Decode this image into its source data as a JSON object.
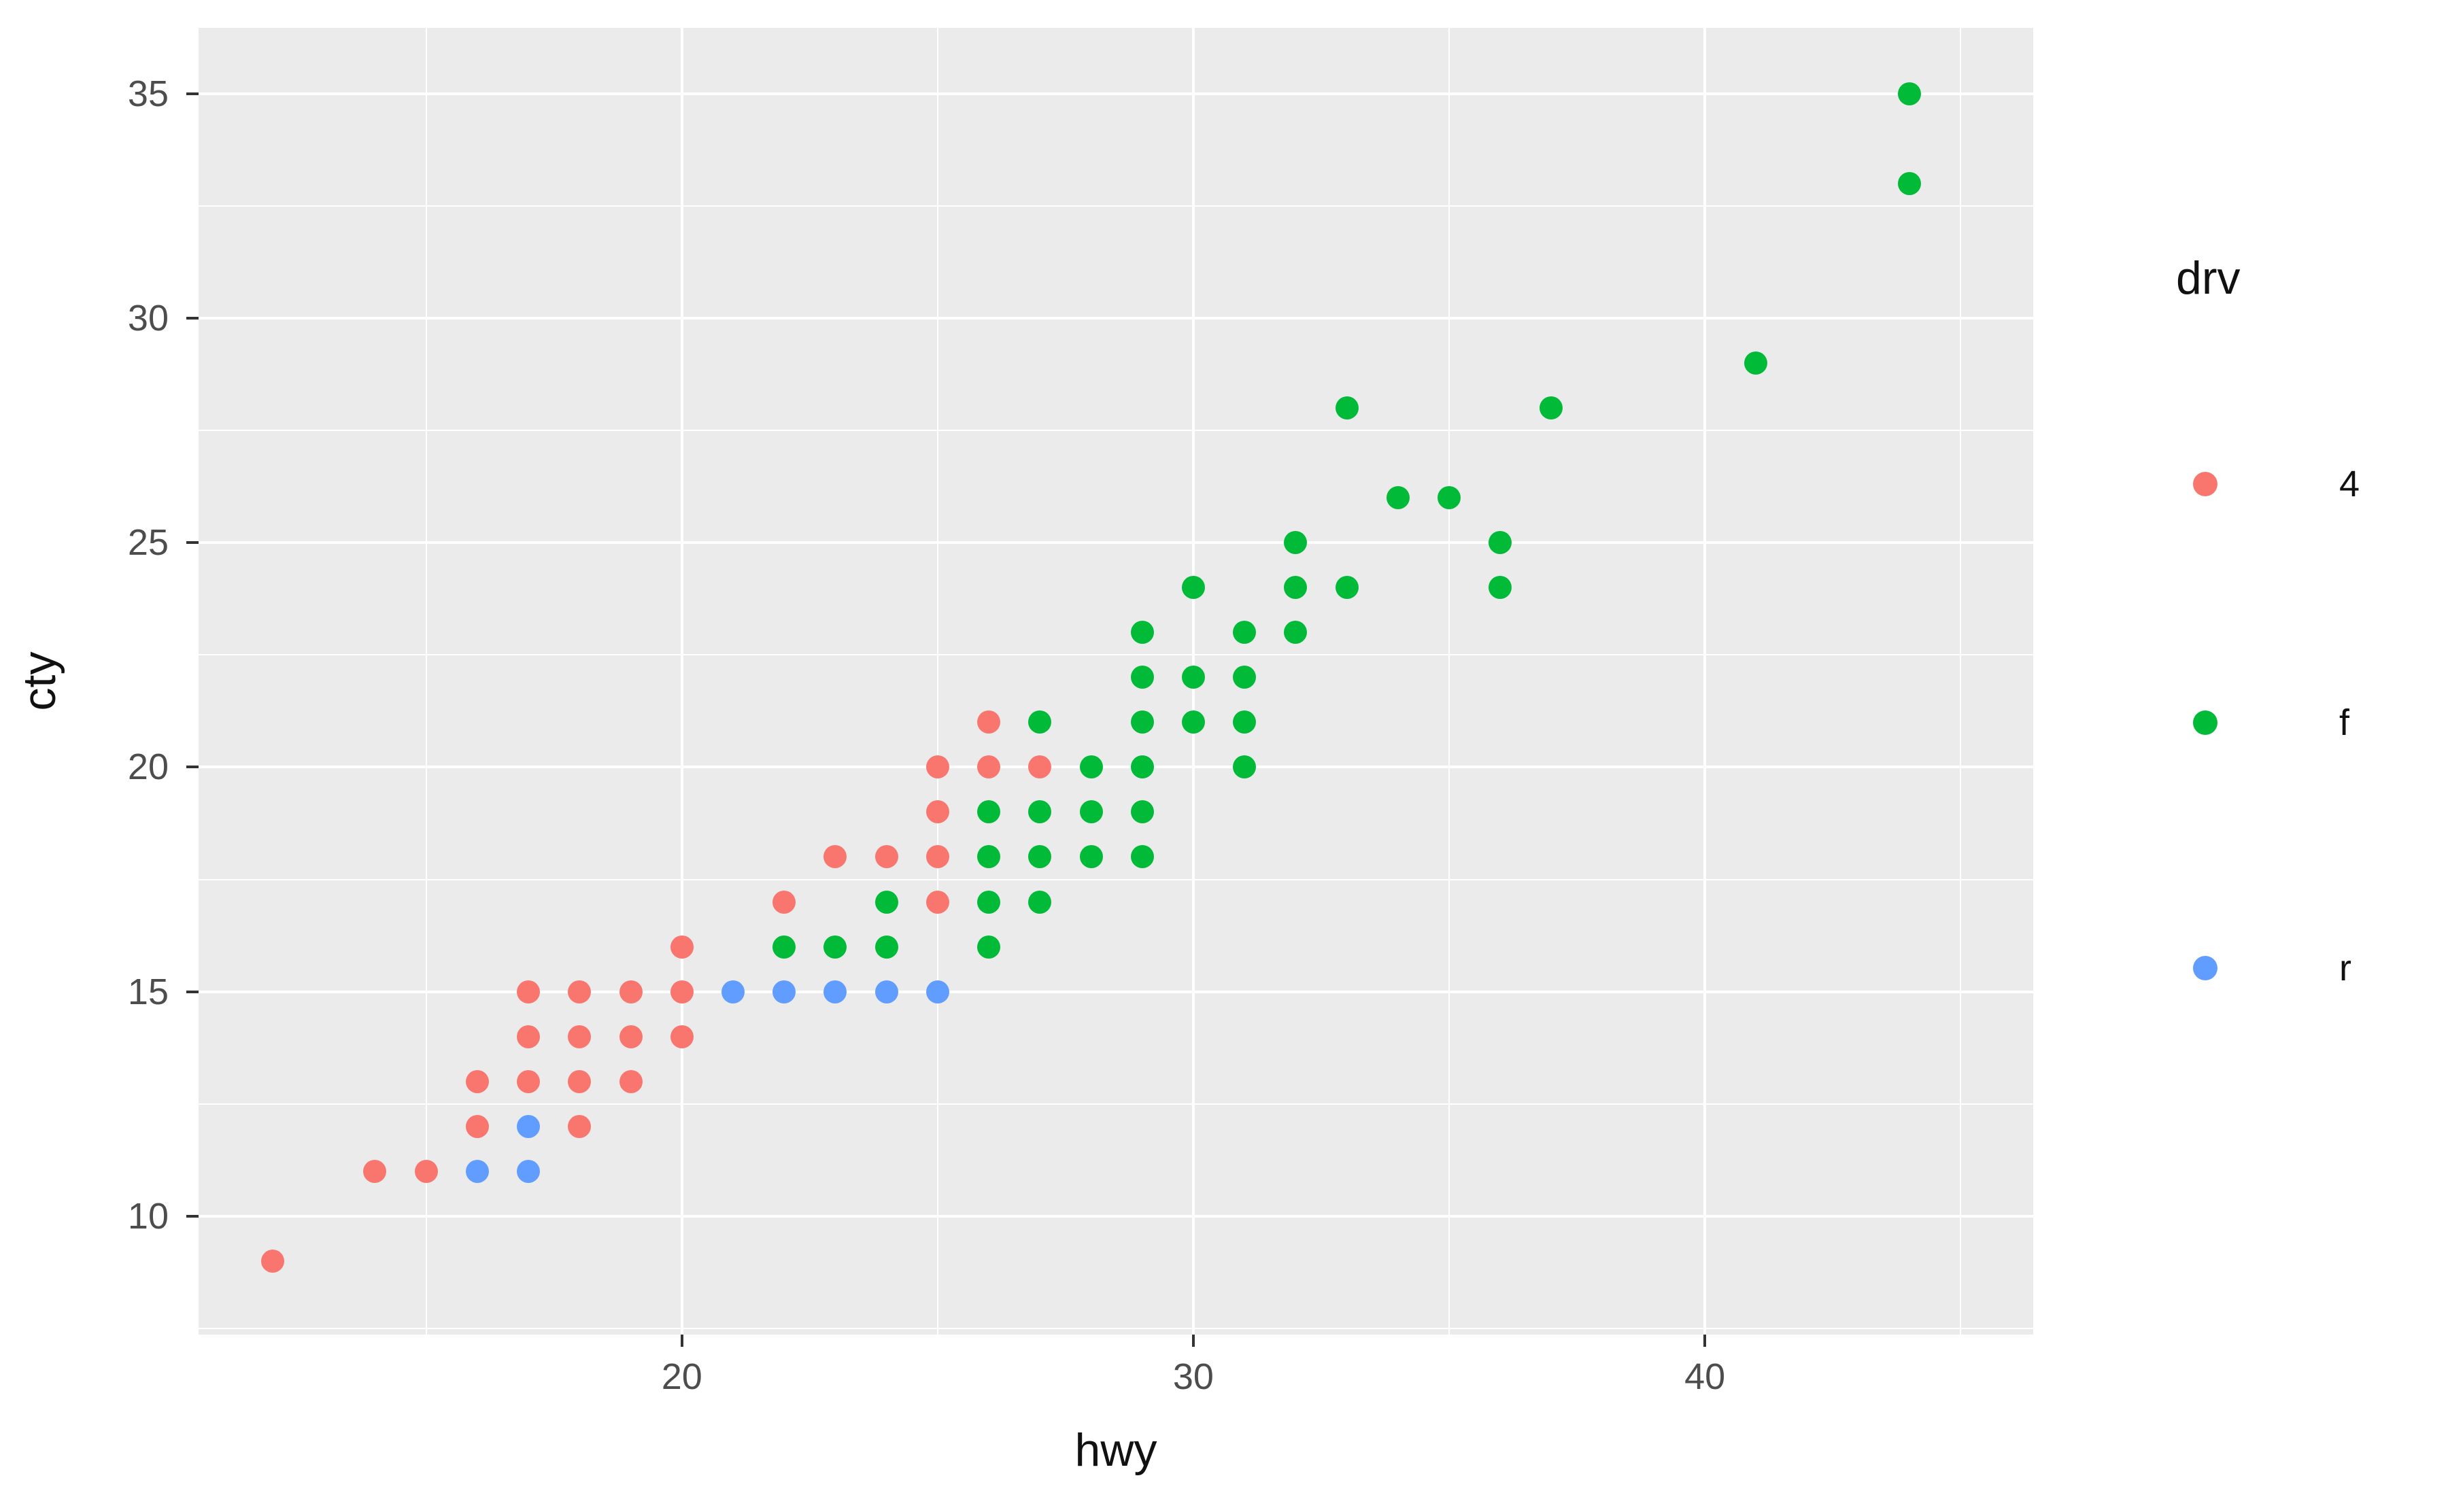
{
  "chart_data": {
    "type": "scatter",
    "title": "",
    "xlabel": "hwy",
    "ylabel": "cty",
    "xlim": [
      10.55,
      46.42
    ],
    "ylim": [
      7.36,
      36.47
    ],
    "x_ticks": [
      20,
      30,
      40
    ],
    "y_ticks": [
      10,
      15,
      20,
      25,
      30,
      35
    ],
    "x_minor": [
      15,
      25,
      35,
      45
    ],
    "y_minor": [
      7.5,
      12.5,
      17.5,
      22.5,
      27.5,
      32.5
    ],
    "grid": "on",
    "legend": {
      "title": "drv",
      "position": "right"
    },
    "style": {
      "panel_background": "#EBEBEB",
      "grid_color": "#FFFFFF",
      "tick_color": "#333333",
      "tick_text_color": "#4D4D4D",
      "title_text_color": "#111111"
    },
    "series": [
      {
        "name": "4",
        "color": "#F8766D",
        "points": [
          [
            12,
            9
          ],
          [
            14,
            11
          ],
          [
            15,
            11
          ],
          [
            16,
            12
          ],
          [
            16,
            13
          ],
          [
            17,
            13
          ],
          [
            17,
            14
          ],
          [
            17,
            15
          ],
          [
            18,
            12
          ],
          [
            18,
            13
          ],
          [
            18,
            14
          ],
          [
            18,
            15
          ],
          [
            19,
            13
          ],
          [
            19,
            14
          ],
          [
            19,
            15
          ],
          [
            20,
            14
          ],
          [
            20,
            15
          ],
          [
            20,
            16
          ],
          [
            22,
            17
          ],
          [
            23,
            18
          ],
          [
            24,
            18
          ],
          [
            25,
            17
          ],
          [
            25,
            18
          ],
          [
            25,
            19
          ],
          [
            25,
            20
          ],
          [
            26,
            20
          ],
          [
            26,
            21
          ],
          [
            27,
            20
          ]
        ]
      },
      {
        "name": "f",
        "color": "#00BA38",
        "points": [
          [
            22,
            16
          ],
          [
            23,
            16
          ],
          [
            24,
            16
          ],
          [
            26,
            16
          ],
          [
            24,
            17
          ],
          [
            26,
            17
          ],
          [
            27,
            17
          ],
          [
            26,
            18
          ],
          [
            27,
            18
          ],
          [
            28,
            18
          ],
          [
            29,
            18
          ],
          [
            26,
            19
          ],
          [
            27,
            19
          ],
          [
            28,
            19
          ],
          [
            29,
            19
          ],
          [
            28,
            20
          ],
          [
            29,
            20
          ],
          [
            31,
            20
          ],
          [
            27,
            21
          ],
          [
            29,
            21
          ],
          [
            30,
            21
          ],
          [
            31,
            21
          ],
          [
            29,
            22
          ],
          [
            30,
            22
          ],
          [
            31,
            22
          ],
          [
            29,
            23
          ],
          [
            31,
            23
          ],
          [
            32,
            23
          ],
          [
            30,
            24
          ],
          [
            32,
            24
          ],
          [
            33,
            24
          ],
          [
            36,
            24
          ],
          [
            32,
            25
          ],
          [
            36,
            25
          ],
          [
            34,
            26
          ],
          [
            35,
            26
          ],
          [
            33,
            28
          ],
          [
            37,
            28
          ],
          [
            41,
            29
          ],
          [
            44,
            33
          ],
          [
            44,
            35
          ]
        ]
      },
      {
        "name": "r",
        "color": "#619CFF",
        "points": [
          [
            16,
            11
          ],
          [
            17,
            11
          ],
          [
            17,
            12
          ],
          [
            21,
            15
          ],
          [
            22,
            15
          ],
          [
            23,
            15
          ],
          [
            24,
            15
          ],
          [
            25,
            15
          ]
        ]
      }
    ]
  }
}
